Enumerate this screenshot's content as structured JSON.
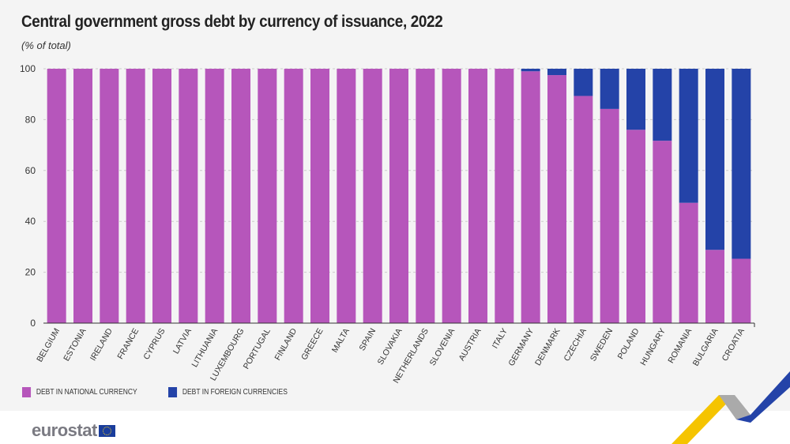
{
  "title": "Central government gross debt by currency of issuance, 2022",
  "subtitle": "(% of total)",
  "colors": {
    "national": "#b656bb",
    "foreign": "#2443a8"
  },
  "legend": {
    "national": "DEBT IN NATIONAL CURRENCY",
    "foreign": "DEBT IN FOREIGN CURRENCIES"
  },
  "logo": "eurostat",
  "chart_data": {
    "type": "bar",
    "stacked": true,
    "categories": [
      "BELGIUM",
      "ESTONIA",
      "IRELAND",
      "FRANCE",
      "CYPRUS",
      "LATVIA",
      "LITHUANIA",
      "LUXEMBOURG",
      "PORTUGAL",
      "FINLAND",
      "GREECE",
      "MALTA",
      "SPAIN",
      "SLOVAKIA",
      "NETHERLANDS",
      "SLOVENIA",
      "AUSTRIA",
      "ITALY",
      "GERMANY",
      "DENMARK",
      "CZECHIA",
      "SWEDEN",
      "POLAND",
      "HUNGARY",
      "ROMANIA",
      "BULGARIA",
      "CROATIA"
    ],
    "series": [
      {
        "name": "DEBT IN NATIONAL CURRENCY",
        "values": [
          100,
          100,
          100,
          100,
          100,
          100,
          100,
          100,
          100,
          100,
          100,
          100,
          100,
          100,
          100,
          100,
          100,
          100,
          99.0,
          97.5,
          89.3,
          84.2,
          76.0,
          71.7,
          47.3,
          28.8,
          25.3
        ]
      },
      {
        "name": "DEBT IN FOREIGN CURRENCIES",
        "values": [
          0,
          0,
          0,
          0,
          0,
          0,
          0,
          0,
          0,
          0,
          0,
          0,
          0,
          0,
          0,
          0,
          0,
          0,
          1.0,
          2.5,
          10.7,
          15.8,
          24.0,
          28.3,
          52.7,
          71.2,
          74.7
        ]
      }
    ],
    "ylim": [
      0,
      100
    ],
    "yticks": [
      "0",
      "20",
      "40",
      "60",
      "80",
      "100"
    ],
    "grid": true,
    "legend_position": "bottom-left"
  }
}
